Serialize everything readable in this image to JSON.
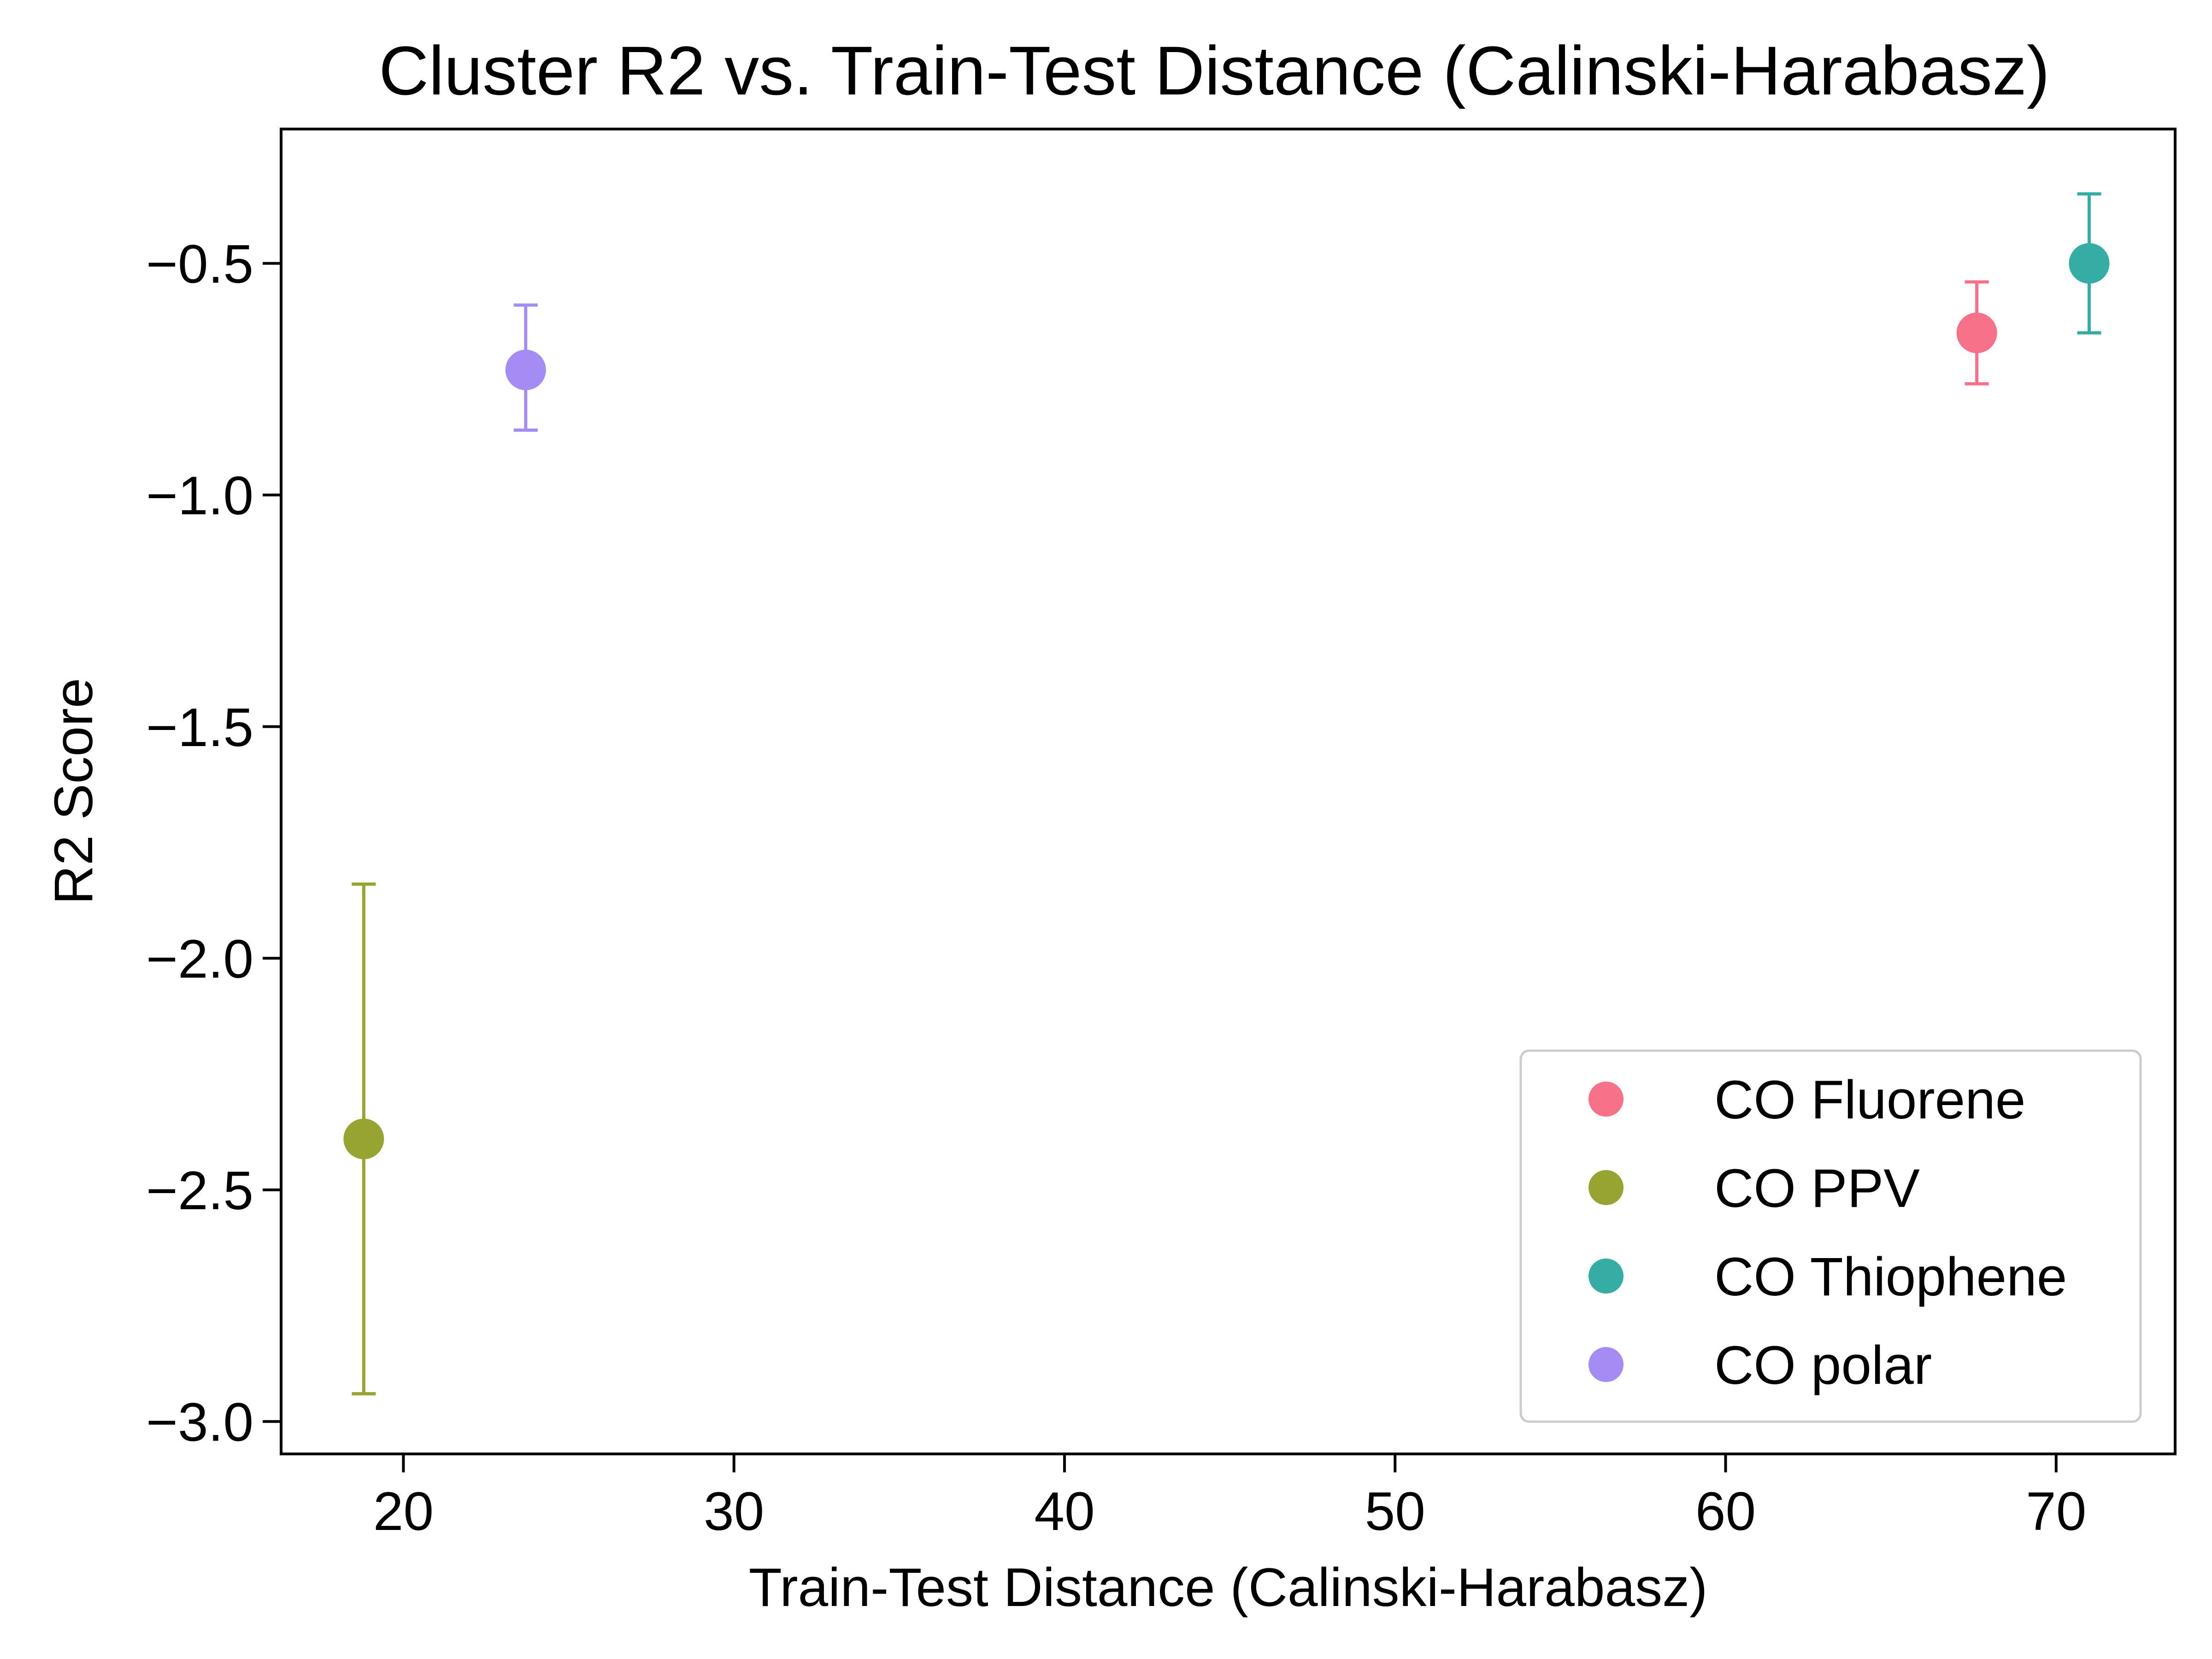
{
  "chart_data": {
    "type": "scatter",
    "title": "Cluster R2 vs. Train-Test Distance (Calinski-Harabasz)",
    "xlabel": "Train-Test Distance (Calinski-Harabasz)",
    "ylabel": "R2 Score",
    "xlim": [
      16.3,
      73.6
    ],
    "ylim": [
      -3.07,
      -0.21
    ],
    "xticks": [
      20,
      30,
      40,
      50,
      60,
      70
    ],
    "xtick_labels": [
      "20",
      "30",
      "40",
      "50",
      "60",
      "70"
    ],
    "yticks": [
      -3.0,
      -2.5,
      -2.0,
      -1.5,
      -1.0,
      -0.5
    ],
    "ytick_labels": [
      "−3.0",
      "−2.5",
      "−2.0",
      "−1.5",
      "−1.0",
      "−0.5"
    ],
    "grid": false,
    "legend_position": "lower-right",
    "series": [
      {
        "name": "CO Fluorene",
        "color": "#f77189",
        "x": 67.6,
        "y": -0.65,
        "err_low": -0.76,
        "err_high": -0.54
      },
      {
        "name": "CO PPV",
        "color": "#97a431",
        "x": 18.8,
        "y": -2.39,
        "err_low": -2.94,
        "err_high": -1.84
      },
      {
        "name": "CO Thiophene",
        "color": "#36ada4",
        "x": 71.0,
        "y": -0.5,
        "err_low": -0.65,
        "err_high": -0.35
      },
      {
        "name": "CO polar",
        "color": "#a48cf4",
        "x": 23.7,
        "y": -0.73,
        "err_low": -0.86,
        "err_high": -0.59
      }
    ]
  }
}
